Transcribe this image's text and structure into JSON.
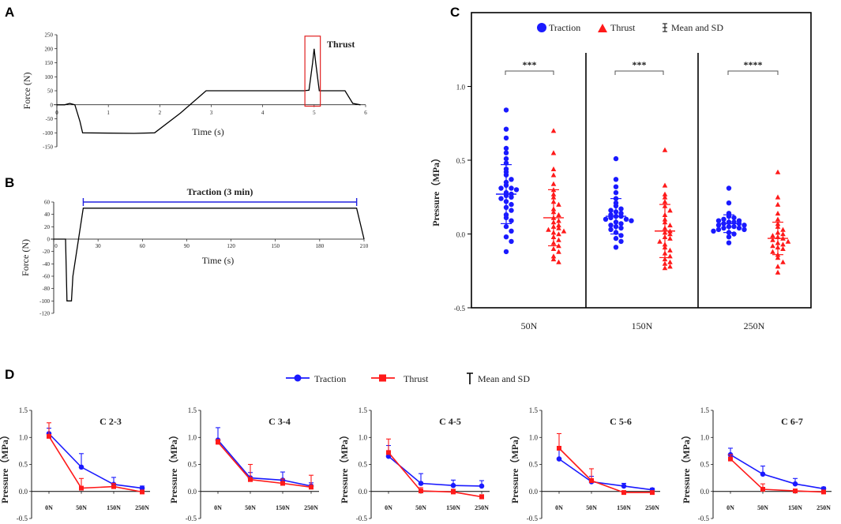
{
  "colors": {
    "traction": "#1a1aff",
    "thrust": "#ff1a1a",
    "black": "#000000",
    "red_box": "#e02020",
    "blue_line": "#2020e0"
  },
  "chart_data": [
    {
      "panel": "A",
      "type": "line",
      "xlabel": "Time (s)",
      "ylabel": "Force (N)",
      "xlim": [
        0,
        6
      ],
      "ylim": [
        -150,
        250
      ],
      "xticks": [
        0,
        1,
        2,
        3,
        4,
        5,
        6
      ],
      "yticks": [
        250,
        200,
        150,
        100,
        50,
        0,
        -50,
        -100,
        -150
      ],
      "annotation": "Thrust",
      "x": [
        0,
        0.15,
        0.25,
        0.35,
        0.45,
        0.5,
        1.5,
        1.9,
        2.4,
        2.9,
        3.5,
        4.8,
        4.9,
        4.97,
        5.0,
        5.03,
        5.1,
        5.2,
        5.6,
        5.75,
        5.9
      ],
      "y": [
        0,
        0,
        5,
        0,
        -60,
        -100,
        -102,
        -100,
        -30,
        50,
        50,
        50,
        52,
        150,
        200,
        150,
        50,
        50,
        50,
        5,
        0
      ]
    },
    {
      "panel": "B",
      "type": "line",
      "xlabel": "Time (s)",
      "ylabel": "Force (N)",
      "xlim": [
        0,
        210
      ],
      "ylim": [
        -120,
        60
      ],
      "xticks": [
        0,
        30,
        60,
        90,
        120,
        150,
        180,
        210
      ],
      "yticks": [
        60,
        40,
        20,
        0,
        -20,
        -40,
        -60,
        -80,
        -100,
        -120
      ],
      "annotation": "Traction (3 min)",
      "x": [
        0,
        8,
        9,
        12,
        13,
        20,
        205,
        210
      ],
      "y": [
        0,
        0,
        -100,
        -100,
        -60,
        50,
        50,
        0
      ]
    },
    {
      "panel": "C",
      "type": "scatter",
      "ylabel": "Pressure（MPa）",
      "ylim": [
        -0.5,
        1.5
      ],
      "yticks": [
        "1.0",
        "0.5",
        "0.0",
        "-0.5"
      ],
      "categories": [
        "50N",
        "150N",
        "250N"
      ],
      "legend": [
        "Traction",
        "Thrust",
        "Mean and SD"
      ],
      "significance": [
        "***",
        "***",
        "****"
      ],
      "series": [
        {
          "name": "Traction",
          "group": "50N",
          "mean": 0.27,
          "sd": 0.2,
          "values": [
            0.84,
            0.71,
            0.65,
            0.58,
            0.55,
            0.51,
            0.48,
            0.44,
            0.42,
            0.4,
            0.37,
            0.35,
            0.33,
            0.31,
            0.31,
            0.3,
            0.28,
            0.27,
            0.26,
            0.25,
            0.24,
            0.22,
            0.2,
            0.18,
            0.16,
            0.13,
            0.11,
            0.09,
            0.05,
            0.02,
            -0.02,
            -0.05,
            -0.12
          ]
        },
        {
          "name": "Thrust",
          "group": "50N",
          "mean": 0.11,
          "sd": 0.19,
          "values": [
            0.7,
            0.55,
            0.44,
            0.4,
            0.34,
            0.3,
            0.27,
            0.25,
            0.22,
            0.2,
            0.17,
            0.15,
            0.13,
            0.11,
            0.09,
            0.08,
            0.06,
            0.05,
            0.04,
            0.03,
            0.02,
            0.01,
            0.0,
            -0.02,
            -0.04,
            -0.06,
            -0.08,
            -0.1,
            -0.12,
            -0.15,
            -0.17,
            -0.19
          ]
        },
        {
          "name": "Traction",
          "group": "150N",
          "mean": 0.12,
          "sd": 0.12,
          "values": [
            0.51,
            0.37,
            0.32,
            0.28,
            0.24,
            0.21,
            0.19,
            0.17,
            0.16,
            0.15,
            0.14,
            0.13,
            0.12,
            0.12,
            0.11,
            0.1,
            0.1,
            0.09,
            0.08,
            0.07,
            0.06,
            0.05,
            0.04,
            0.03,
            0.01,
            -0.01,
            -0.03,
            -0.05,
            -0.09
          ]
        },
        {
          "name": "Thrust",
          "group": "150N",
          "mean": 0.02,
          "sd": 0.18,
          "values": [
            0.57,
            0.33,
            0.27,
            0.25,
            0.22,
            0.19,
            0.16,
            0.13,
            0.1,
            0.08,
            0.06,
            0.04,
            0.02,
            0.01,
            0.0,
            -0.02,
            -0.03,
            -0.05,
            -0.07,
            -0.09,
            -0.11,
            -0.13,
            -0.15,
            -0.17,
            -0.19,
            -0.2,
            -0.22,
            -0.23
          ]
        },
        {
          "name": "Traction",
          "group": "250N",
          "mean": 0.07,
          "sd": 0.06,
          "values": [
            0.31,
            0.21,
            0.14,
            0.12,
            0.11,
            0.1,
            0.09,
            0.09,
            0.08,
            0.08,
            0.07,
            0.07,
            0.06,
            0.06,
            0.05,
            0.05,
            0.04,
            0.04,
            0.03,
            0.03,
            0.02,
            0.01,
            0.0,
            -0.02,
            -0.06
          ]
        },
        {
          "name": "Thrust",
          "group": "250N",
          "mean": -0.03,
          "sd": 0.11,
          "values": [
            0.42,
            0.25,
            0.2,
            0.14,
            0.1,
            0.07,
            0.05,
            0.03,
            0.01,
            0.0,
            -0.01,
            -0.02,
            -0.03,
            -0.04,
            -0.05,
            -0.06,
            -0.07,
            -0.08,
            -0.09,
            -0.1,
            -0.12,
            -0.14,
            -0.16,
            -0.19,
            -0.22,
            -0.26
          ]
        }
      ]
    },
    {
      "panel": "D",
      "type": "line",
      "legend": [
        "Traction",
        "Thrust",
        "Mean and SD"
      ],
      "categories": [
        "0N",
        "50N",
        "150N",
        "250N"
      ],
      "ylim": [
        -0.5,
        1.5
      ],
      "yticks": [
        "1.5",
        "1.0",
        "0.5",
        "0.0",
        "-0.5"
      ],
      "ylabel": "Pressure（MPa）",
      "subplots": [
        {
          "title": "C 2-3",
          "series": [
            {
              "name": "Traction",
              "values": [
                1.07,
                0.45,
                0.13,
                0.06
              ],
              "sd": [
                0.1,
                0.25,
                0.13,
                0.04
              ]
            },
            {
              "name": "Thrust",
              "values": [
                1.02,
                0.06,
                0.09,
                -0.01
              ],
              "sd": [
                0.25,
                0.18,
                0.06,
                0.03
              ]
            }
          ]
        },
        {
          "title": "C 3-4",
          "series": [
            {
              "name": "Traction",
              "values": [
                0.95,
                0.25,
                0.21,
                0.1
              ],
              "sd": [
                0.23,
                0.1,
                0.15,
                0.06
              ]
            },
            {
              "name": "Thrust",
              "values": [
                0.91,
                0.22,
                0.15,
                0.08
              ],
              "sd": [
                0.05,
                0.28,
                0.08,
                0.22
              ]
            }
          ]
        },
        {
          "title": "C 4-5",
          "series": [
            {
              "name": "Traction",
              "values": [
                0.65,
                0.15,
                0.11,
                0.1
              ],
              "sd": [
                0.2,
                0.18,
                0.1,
                0.1
              ]
            },
            {
              "name": "Thrust",
              "values": [
                0.72,
                0.01,
                -0.01,
                -0.1
              ],
              "sd": [
                0.25,
                0.06,
                0.05,
                0.04
              ]
            }
          ]
        },
        {
          "title": "C 5-6",
          "series": [
            {
              "name": "Traction",
              "values": [
                0.6,
                0.18,
                0.1,
                0.03
              ],
              "sd": [
                0.2,
                0.1,
                0.05,
                0.03
              ]
            },
            {
              "name": "Thrust",
              "values": [
                0.8,
                0.2,
                -0.02,
                -0.02
              ],
              "sd": [
                0.27,
                0.22,
                0.03,
                0.02
              ]
            }
          ]
        },
        {
          "title": "C 6-7",
          "series": [
            {
              "name": "Traction",
              "values": [
                0.68,
                0.32,
                0.14,
                0.05
              ],
              "sd": [
                0.12,
                0.15,
                0.1,
                0.03
              ]
            },
            {
              "name": "Thrust",
              "values": [
                0.6,
                0.04,
                0.01,
                -0.01
              ],
              "sd": [
                0.08,
                0.1,
                0.03,
                0.02
              ]
            }
          ]
        }
      ]
    }
  ]
}
